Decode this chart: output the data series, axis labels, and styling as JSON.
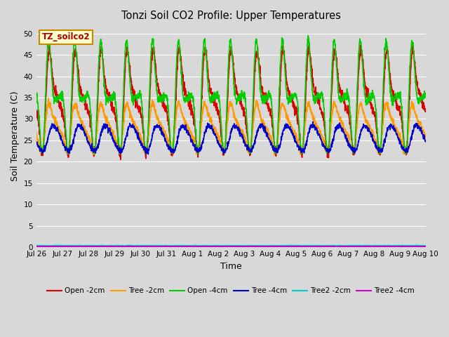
{
  "title": "Tonzi Soil CO2 Profile: Upper Temperatures",
  "xlabel": "Time",
  "ylabel": "Soil Temperature (C)",
  "label_box": "TZ_soilco2",
  "ylim": [
    0,
    52
  ],
  "yticks": [
    0,
    5,
    10,
    15,
    20,
    25,
    30,
    35,
    40,
    45,
    50
  ],
  "x_tick_labels": [
    "Jul 26",
    "Jul 27",
    "Jul 28",
    "Jul 29",
    "Jul 30",
    "Jul 31",
    "Aug 1",
    "Aug 2",
    "Aug 3",
    "Aug 4",
    "Aug 5",
    "Aug 6",
    "Aug 7",
    "Aug 8",
    "Aug 9",
    "Aug 10"
  ],
  "series_names": [
    "Open -2cm",
    "Tree -2cm",
    "Open -4cm",
    "Tree -4cm",
    "Tree2 -2cm",
    "Tree2 -4cm"
  ],
  "series_colors": [
    "#dd0000",
    "#ff9900",
    "#00cc00",
    "#0000cc",
    "#00cccc",
    "#cc00cc"
  ],
  "series_lw": [
    1.2,
    1.2,
    1.2,
    1.2,
    1.2,
    1.2
  ],
  "background_color": "#d8d8d8",
  "plot_bg_color": "#d8d8d8",
  "grid_color": "#ffffff",
  "n_days": 15,
  "pts_per_day": 144
}
